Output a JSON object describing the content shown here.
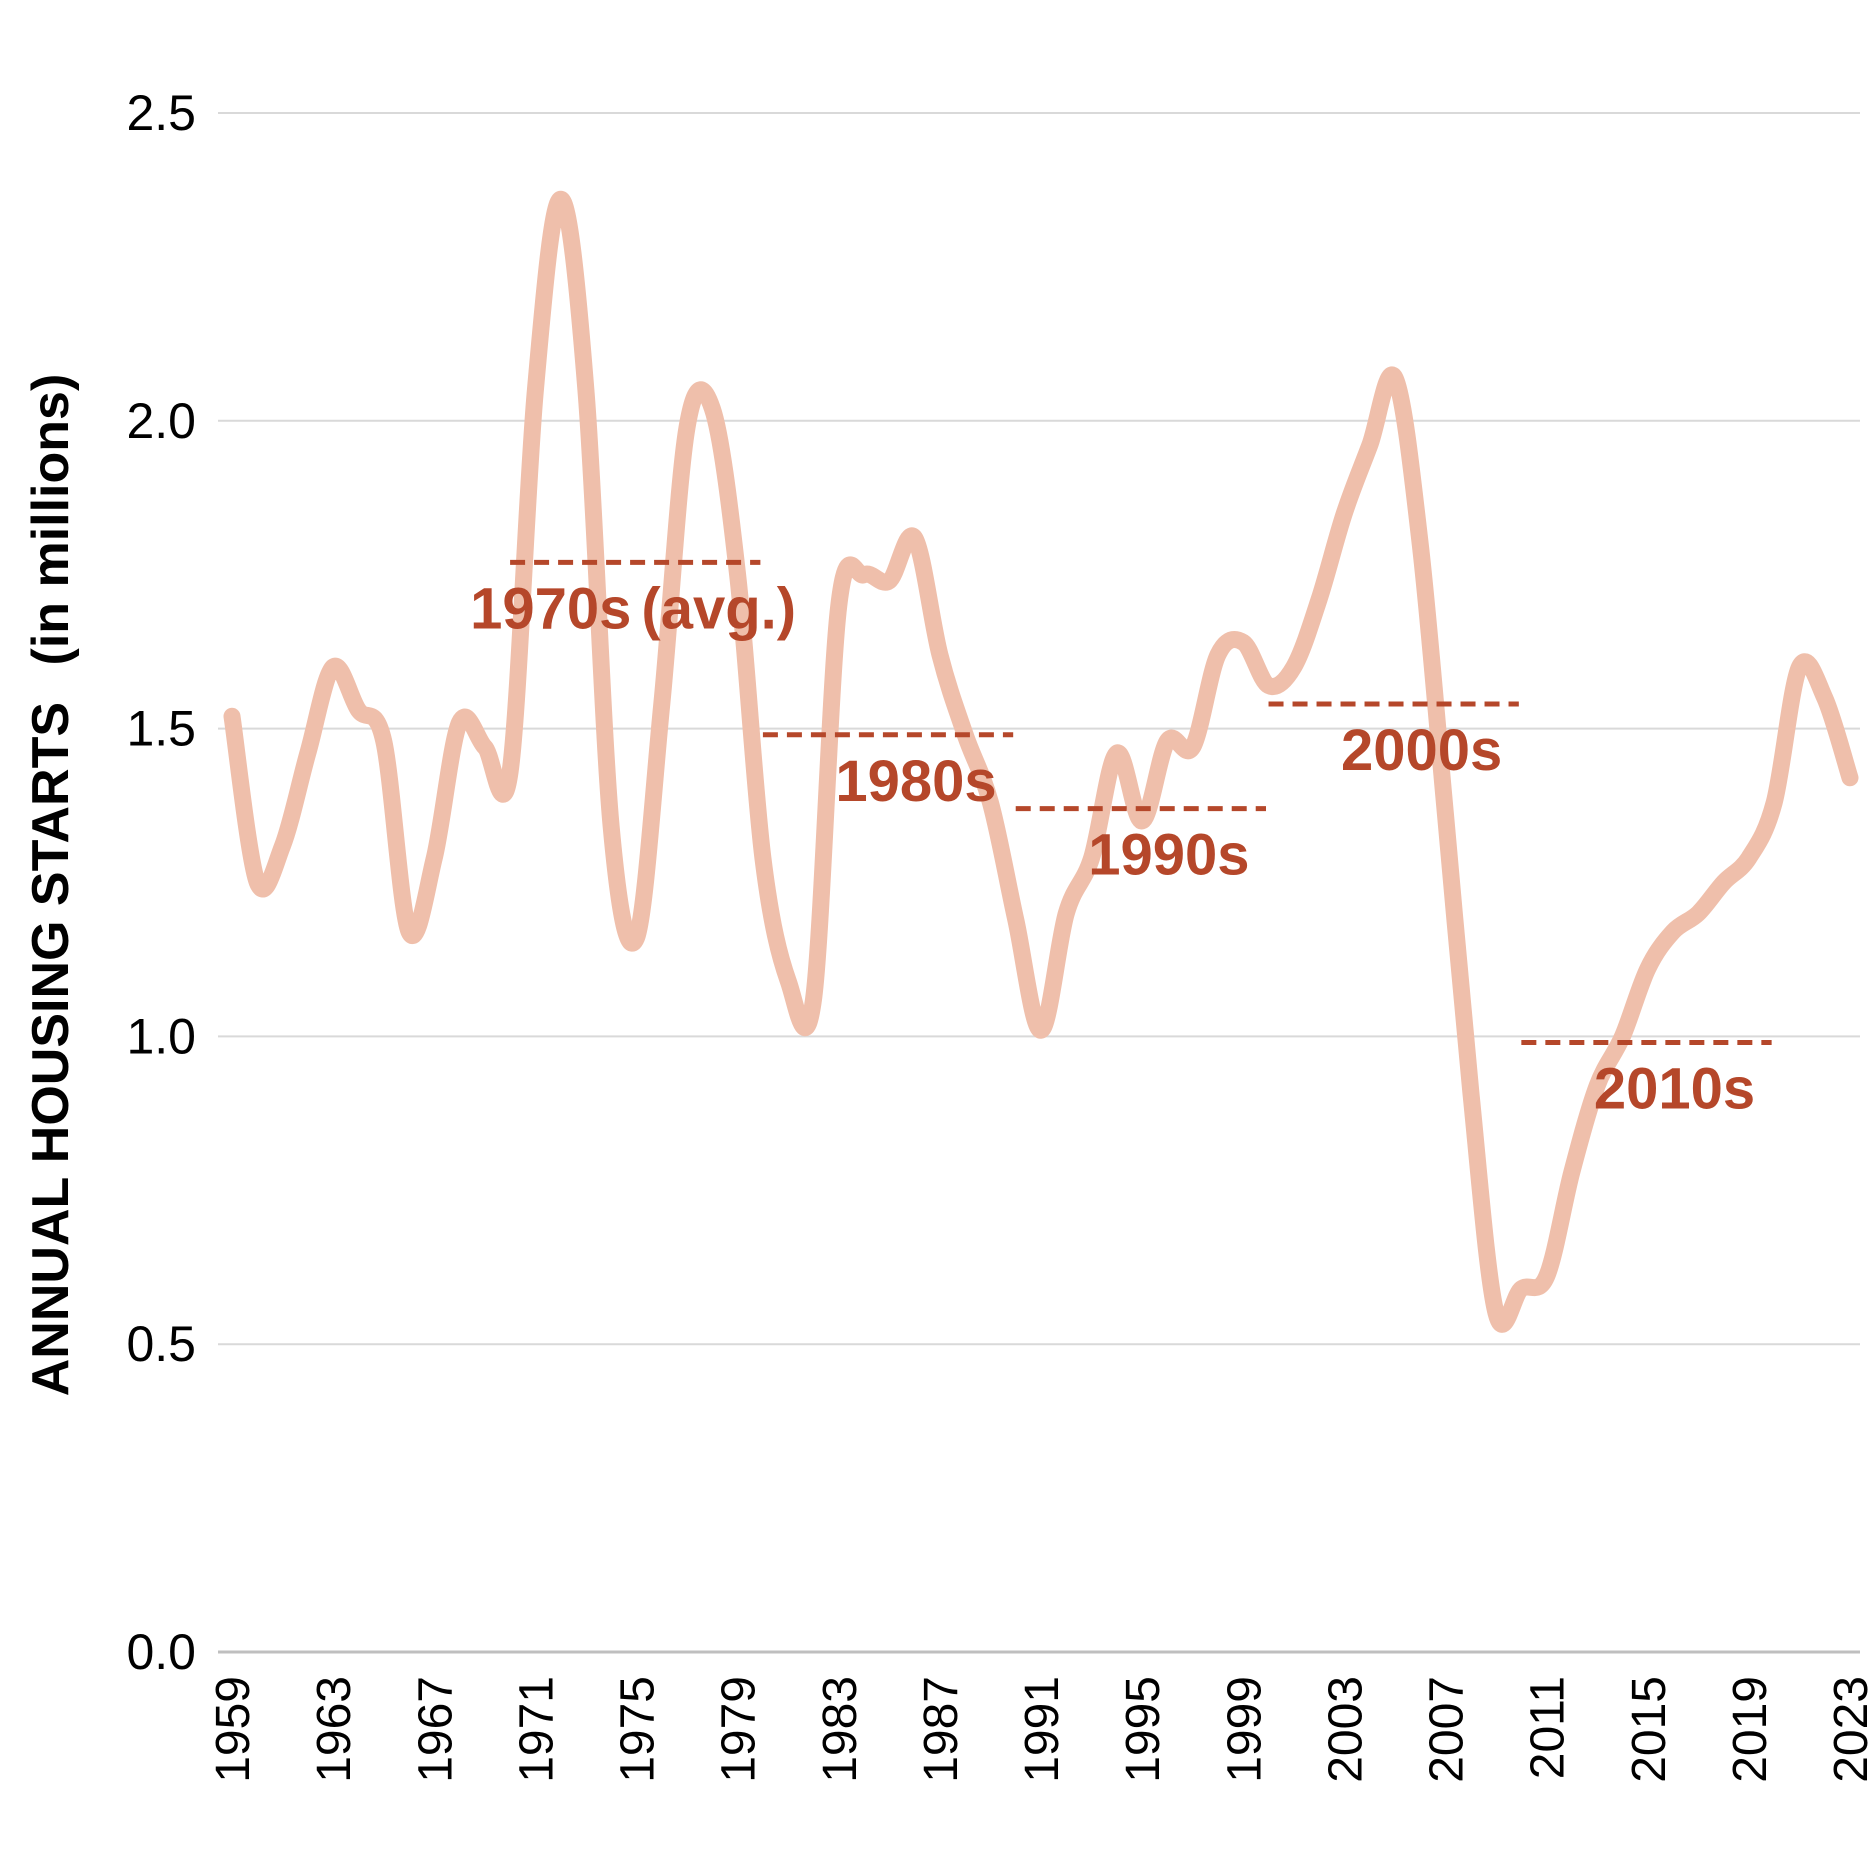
{
  "chart_data": {
    "type": "line",
    "title": "",
    "ylabel": "ANNUAL HOUSING STARTS",
    "ylabel_sub": "(in millions)",
    "xlabel": "",
    "ylim": [
      0,
      2.5
    ],
    "xlim": [
      1959,
      2023
    ],
    "yticks": [
      "0.0",
      "0.5",
      "1.0",
      "1.5",
      "2.0",
      "2.5"
    ],
    "xticks": [
      "1959",
      "1963",
      "1967",
      "1971",
      "1975",
      "1979",
      "1983",
      "1987",
      "1991",
      "1995",
      "1999",
      "2003",
      "2007",
      "2011",
      "2015",
      "2019",
      "2023"
    ],
    "grid": true,
    "series": [
      {
        "name": "Annual housing starts",
        "color": "#efbfab",
        "x": [
          1959,
          1960,
          1961,
          1962,
          1963,
          1964,
          1965,
          1966,
          1967,
          1968,
          1969,
          1970,
          1971,
          1972,
          1973,
          1974,
          1975,
          1976,
          1977,
          1978,
          1979,
          1980,
          1981,
          1982,
          1983,
          1984,
          1985,
          1986,
          1987,
          1988,
          1989,
          1990,
          1991,
          1992,
          1993,
          1994,
          1995,
          1996,
          1997,
          1998,
          1999,
          2000,
          2001,
          2002,
          2003,
          2004,
          2005,
          2006,
          2007,
          2008,
          2009,
          2010,
          2011,
          2012,
          2013,
          2014,
          2015,
          2016,
          2017,
          2018,
          2019,
          2020,
          2021,
          2022,
          2023
        ],
        "values": [
          1.52,
          1.25,
          1.31,
          1.46,
          1.6,
          1.53,
          1.48,
          1.17,
          1.29,
          1.51,
          1.47,
          1.43,
          2.05,
          2.36,
          2.05,
          1.34,
          1.16,
          1.54,
          1.99,
          2.02,
          1.75,
          1.29,
          1.09,
          1.06,
          1.7,
          1.75,
          1.74,
          1.81,
          1.62,
          1.49,
          1.38,
          1.19,
          1.01,
          1.2,
          1.29,
          1.46,
          1.35,
          1.48,
          1.47,
          1.62,
          1.64,
          1.57,
          1.6,
          1.71,
          1.85,
          1.96,
          2.07,
          1.8,
          1.36,
          0.91,
          0.55,
          0.59,
          0.61,
          0.78,
          0.92,
          1.0,
          1.11,
          1.17,
          1.2,
          1.25,
          1.29,
          1.38,
          1.6,
          1.55,
          1.42
        ]
      }
    ],
    "decade_averages": [
      {
        "label": "1970s",
        "label_extra": "(avg.)",
        "start": 1970,
        "end": 1979,
        "value": 1.77
      },
      {
        "label": "1980s",
        "start": 1980,
        "end": 1989,
        "value": 1.49
      },
      {
        "label": "1990s",
        "start": 1990,
        "end": 1999,
        "value": 1.37
      },
      {
        "label": "2000s",
        "start": 2000,
        "end": 2009,
        "value": 1.54
      },
      {
        "label": "2010s",
        "start": 2010,
        "end": 2019,
        "value": 0.99
      }
    ],
    "colors": {
      "line": "#efbfab",
      "decade": "#b5472a",
      "grid": "#d9d9d9",
      "baseline": "#bfbfbf",
      "text": "#000000"
    }
  }
}
